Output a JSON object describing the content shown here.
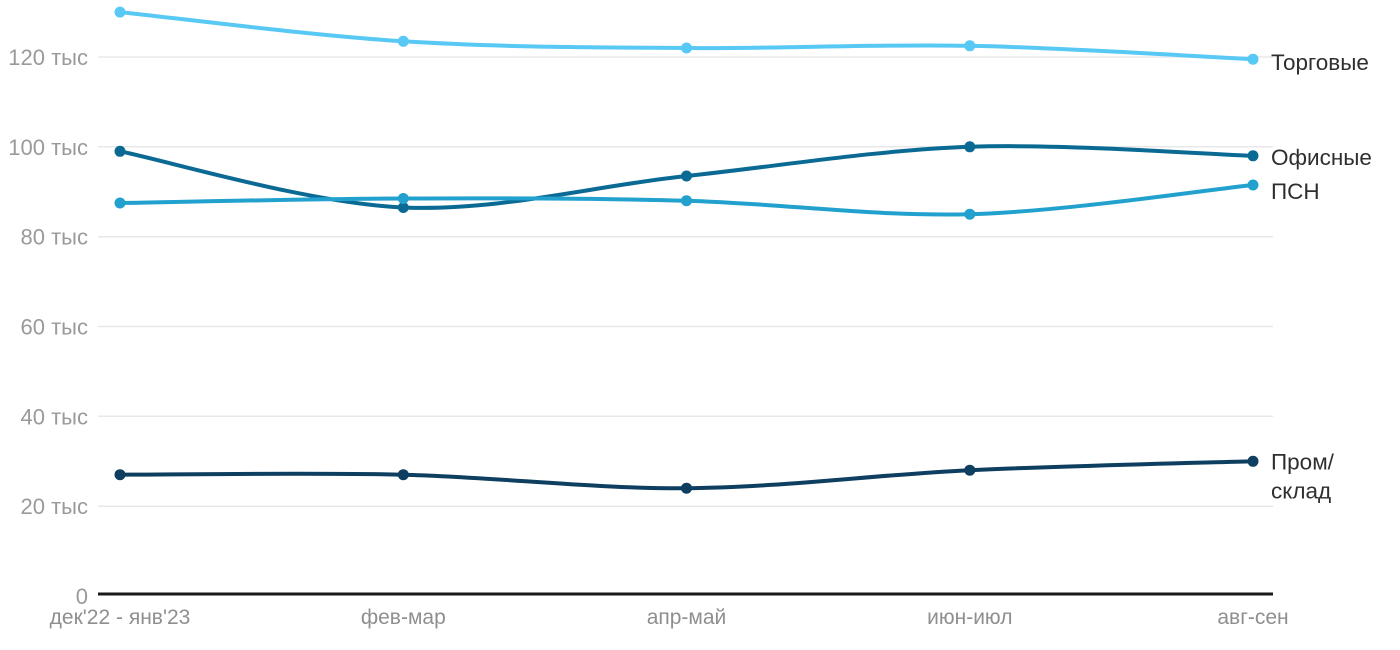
{
  "chart_data": {
    "type": "line",
    "title": "",
    "unit_suffix": "тыс",
    "categories": [
      "дек'22 - янв'23",
      "фев-мар",
      "апр-май",
      "июн-июл",
      "авг-сен"
    ],
    "y_ticks": [
      {
        "value": 0,
        "label": "0"
      },
      {
        "value": 20,
        "label": "20 тыс"
      },
      {
        "value": 40,
        "label": "40 тыс"
      },
      {
        "value": 60,
        "label": "60 тыс"
      },
      {
        "value": 80,
        "label": "80 тыс"
      },
      {
        "value": 100,
        "label": "100 тыс"
      },
      {
        "value": 120,
        "label": "120 тыс"
      }
    ],
    "ylim": [
      0,
      132.5
    ],
    "grid": true,
    "legend_position": "end-of-line-right",
    "series": [
      {
        "name": "Торговые",
        "label_lines": [
          "Торговые"
        ],
        "color": "#58C8F4",
        "values": [
          130,
          123.5,
          122,
          122.5,
          119.5
        ]
      },
      {
        "name": "Офисные",
        "label_lines": [
          "Офисные"
        ],
        "color": "#0B6A94",
        "values": [
          99,
          86.5,
          93.5,
          100,
          98
        ]
      },
      {
        "name": "ПСН",
        "label_lines": [
          "ПСН"
        ],
        "color": "#23A1CE",
        "values": [
          87.5,
          88.5,
          88,
          85,
          91.5
        ]
      },
      {
        "name": "Пром/склад",
        "label_lines": [
          "Пром/",
          "склад"
        ],
        "color": "#0E3E60",
        "values": [
          27,
          27,
          24,
          28,
          30
        ]
      }
    ],
    "colors": {
      "gridline": "#e8e8e8",
      "axis_line": "#1a1a1a",
      "y_tick_text": "#9a9a9a",
      "x_label_text": "#8f8f8f",
      "series_label_text": "#2f2f2f",
      "background": "#ffffff"
    }
  }
}
